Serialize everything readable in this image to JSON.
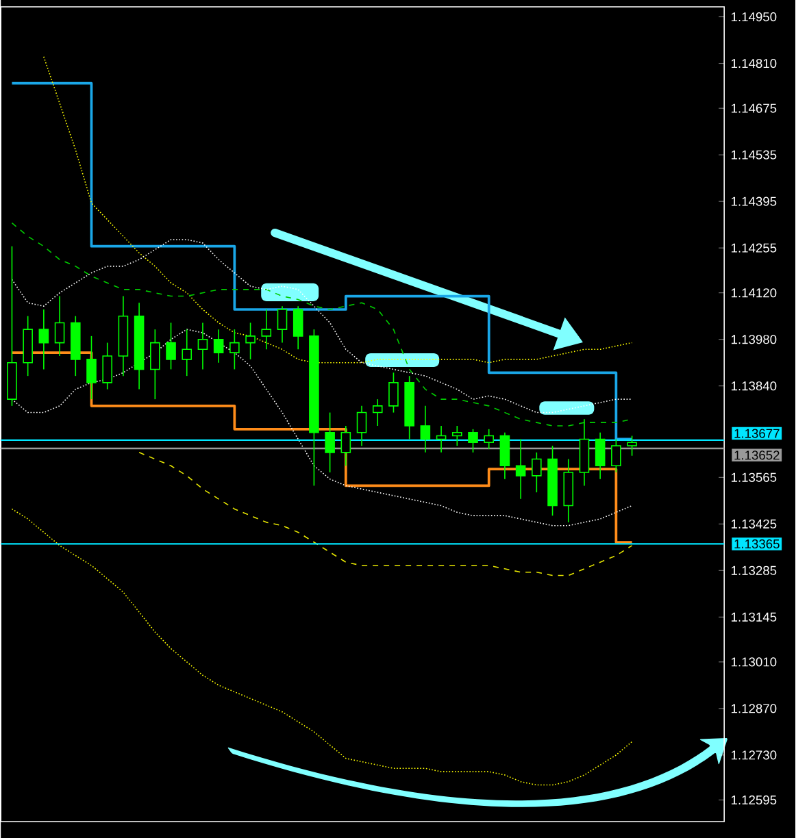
{
  "chart_data": {
    "type": "candlestick",
    "color": "#00ff00",
    "categories": [
      null,
      null,
      null,
      null,
      null,
      null,
      null,
      null,
      null,
      null,
      null,
      null,
      null,
      null,
      null,
      null,
      null,
      null,
      null,
      null,
      null,
      null,
      null,
      null,
      null,
      null,
      null,
      null,
      null,
      null,
      null,
      null,
      null,
      null,
      null,
      null,
      null,
      null,
      null,
      null
    ],
    "ohlc": [
      [
        1.138,
        1.1426,
        1.1378,
        1.1391
      ],
      [
        1.1391,
        1.1405,
        1.1387,
        1.1401
      ],
      [
        1.1401,
        1.1407,
        1.1389,
        1.1397
      ],
      [
        1.1397,
        1.1411,
        1.1393,
        1.1403
      ],
      [
        1.1403,
        1.1405,
        1.1387,
        1.1392
      ],
      [
        1.1392,
        1.1399,
        1.138,
        1.1385
      ],
      [
        1.1385,
        1.1397,
        1.1383,
        1.1393
      ],
      [
        1.1393,
        1.1411,
        1.1387,
        1.1405
      ],
      [
        1.1405,
        1.1409,
        1.1383,
        1.1389
      ],
      [
        1.1389,
        1.1401,
        1.138,
        1.1397
      ],
      [
        1.1397,
        1.1403,
        1.1389,
        1.1392
      ],
      [
        1.1392,
        1.1401,
        1.1387,
        1.1395
      ],
      [
        1.1395,
        1.1403,
        1.1389,
        1.1398
      ],
      [
        1.1398,
        1.1401,
        1.1391,
        1.1394
      ],
      [
        1.1394,
        1.1401,
        1.1389,
        1.1397
      ],
      [
        1.1397,
        1.1403,
        1.1392,
        1.1399
      ],
      [
        1.1399,
        1.1407,
        1.1395,
        1.1401
      ],
      [
        1.1401,
        1.1408,
        1.1397,
        1.1407
      ],
      [
        1.1407,
        1.1408,
        1.1395,
        1.1399
      ],
      [
        1.1399,
        1.1401,
        1.1354,
        1.137
      ],
      [
        1.137,
        1.1376,
        1.1358,
        1.1364
      ],
      [
        1.1364,
        1.1372,
        1.136,
        1.137
      ],
      [
        1.137,
        1.1378,
        1.1366,
        1.1376
      ],
      [
        1.1376,
        1.138,
        1.1372,
        1.1378
      ],
      [
        1.1378,
        1.1388,
        1.1376,
        1.1385
      ],
      [
        1.1385,
        1.1387,
        1.1368,
        1.1372
      ],
      [
        1.1372,
        1.1378,
        1.1364,
        1.1368
      ],
      [
        1.1368,
        1.1372,
        1.1364,
        1.1369
      ],
      [
        1.1369,
        1.1372,
        1.1366,
        1.137
      ],
      [
        1.137,
        1.1371,
        1.1364,
        1.1367
      ],
      [
        1.1367,
        1.1371,
        1.1365,
        1.1369
      ],
      [
        1.1369,
        1.137,
        1.1356,
        1.136
      ],
      [
        1.136,
        1.1368,
        1.135,
        1.1357
      ],
      [
        1.1357,
        1.1364,
        1.1352,
        1.1362
      ],
      [
        1.1362,
        1.1366,
        1.1345,
        1.1348
      ],
      [
        1.1348,
        1.1362,
        1.1343,
        1.1358
      ],
      [
        1.1358,
        1.1374,
        1.1354,
        1.1368
      ],
      [
        1.1368,
        1.137,
        1.1356,
        1.136
      ],
      [
        1.136,
        1.1368,
        1.1358,
        1.1366
      ],
      [
        1.1366,
        1.1369,
        1.1363,
        1.1367
      ]
    ],
    "series": [
      {
        "type": "step",
        "color": "#1aa7e8",
        "line_style": "solid",
        "values": [
          1.1475,
          1.1475,
          1.1475,
          1.1475,
          1.1475,
          1.1426,
          1.1426,
          1.1426,
          1.1426,
          1.1426,
          1.1426,
          1.1426,
          1.1426,
          1.1426,
          1.1407,
          1.1407,
          1.1407,
          1.1407,
          1.1407,
          1.1407,
          1.1407,
          1.1411,
          1.1411,
          1.1411,
          1.1411,
          1.1411,
          1.1411,
          1.1411,
          1.1411,
          1.1411,
          1.1388,
          1.1388,
          1.1388,
          1.1388,
          1.1388,
          1.1388,
          1.1388,
          1.1388,
          1.1368,
          1.1368
        ]
      },
      {
        "type": "step",
        "color": "#ff8c1a",
        "line_style": "solid",
        "values": [
          1.1394,
          1.1394,
          1.1394,
          1.1394,
          1.1394,
          1.1378,
          1.1378,
          1.1378,
          1.1378,
          1.1378,
          1.1378,
          1.1378,
          1.1378,
          1.1378,
          1.1371,
          1.1371,
          1.1371,
          1.1371,
          1.1371,
          1.1371,
          1.1371,
          1.1354,
          1.1354,
          1.1354,
          1.1354,
          1.1354,
          1.1354,
          1.1354,
          1.1354,
          1.1354,
          1.1359,
          1.1359,
          1.1359,
          1.1359,
          1.1359,
          1.1359,
          1.1359,
          1.1359,
          1.1337,
          1.1337
        ]
      },
      {
        "type": "line",
        "color": "#ffff00",
        "line_style": "dotted",
        "values": [
          null,
          null,
          1.1483,
          1.1469,
          1.1455,
          1.1439,
          1.1434,
          1.1429,
          1.1424,
          1.142,
          1.1415,
          1.1412,
          1.1407,
          1.1403,
          1.14,
          1.1399,
          1.1397,
          1.1395,
          1.1392,
          1.1391,
          1.1391,
          1.1391,
          1.1391,
          1.1392,
          1.1392,
          1.1392,
          1.1392,
          1.1392,
          1.1392,
          1.1392,
          1.1391,
          1.1392,
          1.1392,
          1.1392,
          1.1393,
          1.1394,
          1.1395,
          1.1395,
          1.1396,
          1.1397
        ]
      },
      {
        "type": "line",
        "color": "#ffff00",
        "line_style": "dotted",
        "values": [
          1.1347,
          1.1344,
          1.134,
          1.1336,
          1.1333,
          1.133,
          1.1326,
          1.1322,
          1.1316,
          1.131,
          1.1305,
          1.1301,
          1.1297,
          1.1294,
          1.1292,
          1.129,
          1.1288,
          1.1286,
          1.1283,
          1.128,
          1.1276,
          1.1272,
          1.1271,
          1.127,
          1.1269,
          1.1269,
          1.1269,
          1.1268,
          1.1268,
          1.1268,
          1.1268,
          1.1267,
          1.1265,
          1.1264,
          1.1264,
          1.1265,
          1.1267,
          1.127,
          1.1273,
          1.1277
        ]
      },
      {
        "type": "line",
        "color": "#e6e600",
        "line_style": "dashed",
        "values": [
          null,
          null,
          null,
          null,
          null,
          null,
          null,
          null,
          1.1364,
          1.1362,
          1.136,
          1.1357,
          1.1353,
          1.135,
          1.1347,
          1.1345,
          1.1343,
          1.1342,
          1.134,
          1.1337,
          1.1334,
          1.1331,
          1.133,
          1.133,
          1.133,
          1.133,
          1.133,
          1.133,
          1.133,
          1.133,
          1.133,
          1.1329,
          1.1328,
          1.1328,
          1.1327,
          1.1327,
          1.1329,
          1.1331,
          1.1333,
          1.1336
        ]
      },
      {
        "type": "line",
        "color": "#00cc00",
        "line_style": "dashed",
        "values": [
          1.1433,
          1.1429,
          1.1426,
          1.1422,
          1.142,
          1.1417,
          1.1415,
          1.1413,
          1.1413,
          1.1412,
          1.1411,
          1.1411,
          1.1412,
          1.1413,
          1.1413,
          1.1413,
          1.1413,
          1.1411,
          1.141,
          1.1408,
          1.1407,
          1.1408,
          1.1409,
          1.1407,
          1.1401,
          1.1389,
          1.1383,
          1.138,
          1.138,
          1.1379,
          1.1378,
          1.1376,
          1.1374,
          1.1373,
          1.1372,
          1.1372,
          1.1373,
          1.1373,
          1.1373,
          1.1374
        ]
      },
      {
        "type": "line",
        "color": "#ffffff",
        "line_style": "dotted",
        "values": [
          1.1416,
          1.1409,
          1.1408,
          1.1412,
          1.1415,
          1.1418,
          1.142,
          1.142,
          1.1422,
          1.1425,
          1.1428,
          1.1428,
          1.1427,
          1.1422,
          1.1418,
          1.1414,
          1.1413,
          1.1414,
          1.1413,
          1.1408,
          1.1403,
          1.1395,
          1.1391,
          1.139,
          1.1389,
          1.1388,
          1.1387,
          1.1385,
          1.1383,
          1.138,
          1.1381,
          1.138,
          1.1378,
          1.1376,
          1.1376,
          1.1377,
          1.1378,
          1.1379,
          1.138,
          1.138
        ]
      },
      {
        "type": "line",
        "color": "#ffffff",
        "line_style": "dotted",
        "values": [
          1.138,
          1.1376,
          1.1376,
          1.1378,
          1.1383,
          1.1385,
          1.1386,
          1.1388,
          1.1391,
          1.1394,
          1.1398,
          1.1401,
          1.14,
          1.1397,
          1.1394,
          1.139,
          1.1383,
          1.1376,
          1.1368,
          1.136,
          1.1356,
          1.1354,
          1.1353,
          1.1352,
          1.1351,
          1.135,
          1.1349,
          1.1348,
          1.1346,
          1.1345,
          1.1345,
          1.1345,
          1.1344,
          1.1343,
          1.1342,
          1.1342,
          1.1343,
          1.1344,
          1.1346,
          1.1348
        ]
      }
    ],
    "ylim": [
      1.1253,
      1.1498
    ],
    "yticks": [
      {
        "value": 1.12595,
        "label": "1.12595"
      },
      {
        "value": 1.1273,
        "label": "1.12730"
      },
      {
        "value": 1.1287,
        "label": "1.12870"
      },
      {
        "value": 1.1301,
        "label": "1.13010"
      },
      {
        "value": 1.13145,
        "label": "1.13145"
      },
      {
        "value": 1.13285,
        "label": "1.13285"
      },
      {
        "value": 1.13425,
        "label": "1.13425"
      },
      {
        "value": 1.13565,
        "label": "1.13565"
      },
      {
        "value": 1.1384,
        "label": "1.13840"
      },
      {
        "value": 1.1398,
        "label": "1.13980"
      },
      {
        "value": 1.1412,
        "label": "1.14120"
      },
      {
        "value": 1.14255,
        "label": "1.14255"
      },
      {
        "value": 1.14395,
        "label": "1.14395"
      },
      {
        "value": 1.14535,
        "label": "1.14535"
      },
      {
        "value": 1.14675,
        "label": "1.14675"
      },
      {
        "value": 1.1481,
        "label": "1.14810"
      },
      {
        "value": 1.1495,
        "label": "1.14950"
      }
    ],
    "tick_labels": "y",
    "ref_lines": [
      {
        "axis": "y",
        "value": 1.13677,
        "label": "1.13677",
        "color": "#00e5ff"
      },
      {
        "axis": "y",
        "value": 1.13652,
        "label": "1.13652",
        "color": "#9a9a9a"
      },
      {
        "axis": "y",
        "value": 1.13365,
        "label": "1.13365",
        "color": "#00e5ff"
      }
    ]
  }
}
